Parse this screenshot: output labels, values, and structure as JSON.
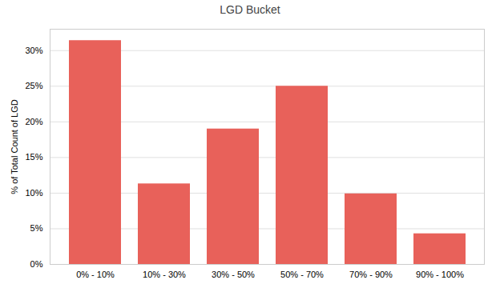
{
  "chart_data": {
    "type": "bar",
    "title": "LGD Bucket",
    "categories": [
      "0% - 10%",
      "10% - 30%",
      "30% - 50%",
      "50% - 70%",
      "70% - 90%",
      "90% - 100%"
    ],
    "values": [
      0.314,
      0.113,
      0.19,
      0.25,
      0.099,
      0.043
    ],
    "color": "#E8615A",
    "ylabel": "% of Total Count of LGD",
    "ylim": [
      0,
      0.33
    ],
    "yticks": [
      {
        "value": 0,
        "label": "0%"
      },
      {
        "value": 0.05,
        "label": "5%"
      },
      {
        "value": 0.1,
        "label": "10%"
      },
      {
        "value": 0.15,
        "label": "15%"
      },
      {
        "value": 0.2,
        "label": "20%"
      },
      {
        "value": 0.25,
        "label": "25%"
      },
      {
        "value": 0.3,
        "label": "30%"
      }
    ],
    "grid": true
  }
}
